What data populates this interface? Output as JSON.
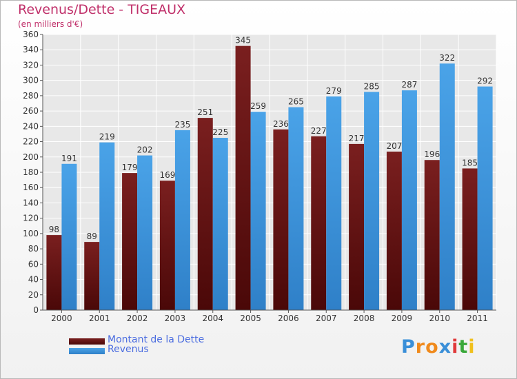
{
  "colors": {
    "debt": "#7a1f1f",
    "debt_dark": "#4a0808",
    "revenue": "#4aa3e8",
    "revenue_dark": "#2f80c8",
    "title": "#c0306a",
    "legend_text": "#4a6ce0",
    "grid": "#ffffff",
    "plot_bg": "#e8e8e8"
  },
  "chart_data": {
    "type": "bar",
    "title": "Revenus/Dette - TIGEAUX",
    "subtitle": "(en milliers d'€)",
    "categories": [
      "2000",
      "2001",
      "2002",
      "2003",
      "2004",
      "2005",
      "2006",
      "2007",
      "2008",
      "2009",
      "2010",
      "2011"
    ],
    "series": [
      {
        "name": "Montant de la Dette",
        "values": [
          98,
          89,
          179,
          169,
          251,
          345,
          236,
          227,
          217,
          207,
          196,
          185
        ]
      },
      {
        "name": "Revenus",
        "values": [
          191,
          219,
          202,
          235,
          225,
          259,
          265,
          279,
          285,
          287,
          322,
          292
        ]
      }
    ],
    "ylim": [
      0,
      360
    ],
    "yticks": [
      0,
      20,
      40,
      60,
      80,
      100,
      120,
      140,
      160,
      180,
      200,
      220,
      240,
      260,
      280,
      300,
      320,
      340,
      360
    ],
    "grid": true,
    "legend_position": "bottom-left"
  },
  "logo": {
    "letters": [
      "P",
      "r",
      "o",
      "x",
      "i",
      "t",
      "i"
    ],
    "letter_colors": [
      "#3a8fd8",
      "#f08a1c",
      "#f08a1c",
      "#3a8fd8",
      "#e03a3a",
      "#3aa83a",
      "#f0c01c"
    ]
  }
}
